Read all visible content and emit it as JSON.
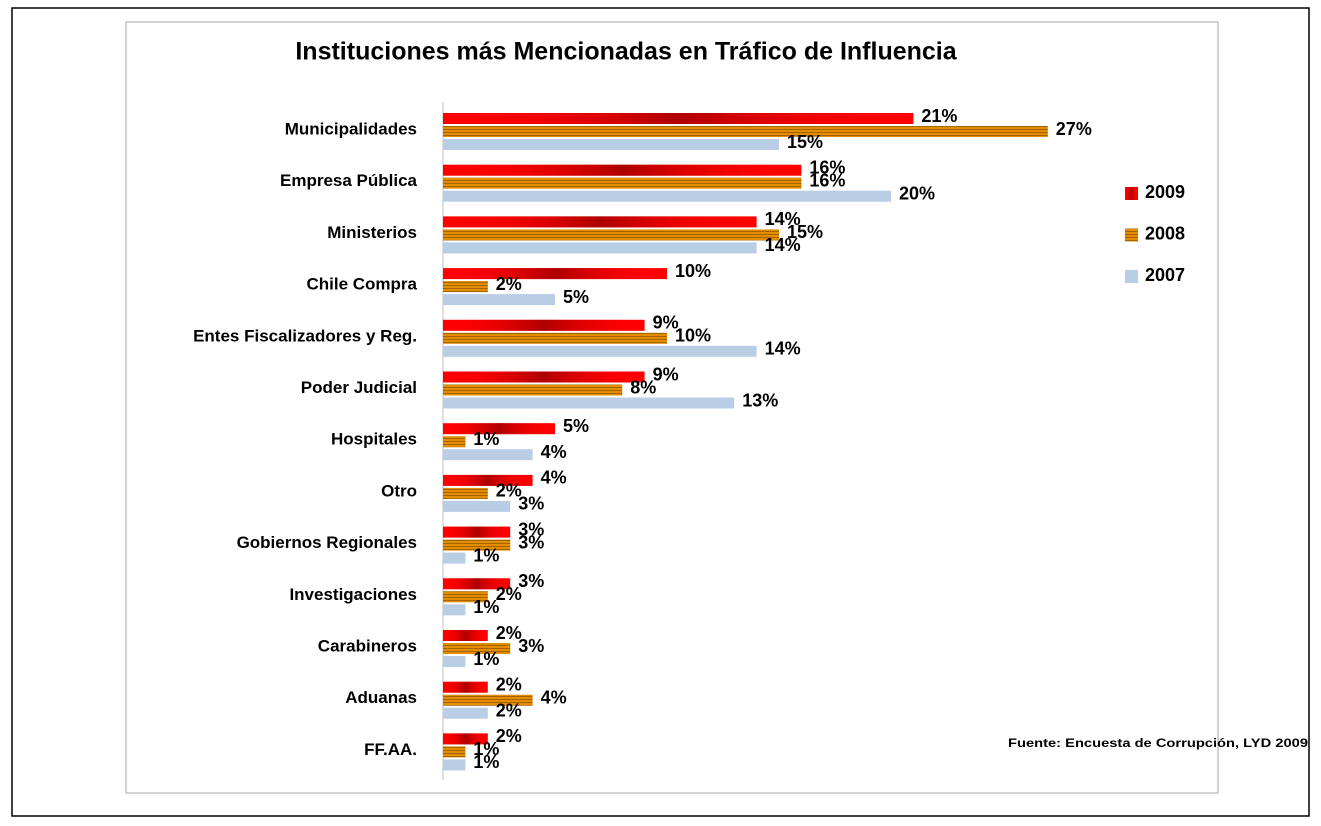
{
  "chart_data": {
    "type": "hbar",
    "title": "Instituciones más Mencionadas en Tráfico de Influencia",
    "categories": [
      "Municipalidades",
      "Empresa Pública",
      "Ministerios",
      "Chile Compra",
      "Entes Fiscalizadores y Reg.",
      "Poder Judicial",
      "Hospitales",
      "Otro",
      "Gobiernos Regionales",
      "Investigaciones",
      "Carabineros",
      "Aduanas",
      "FF.AA."
    ],
    "series": [
      {
        "name": "2009",
        "color": "#ff0000",
        "values": [
          21,
          16,
          14,
          10,
          9,
          9,
          5,
          4,
          3,
          3,
          2,
          2,
          2
        ],
        "value_labels": [
          "21%",
          "16%",
          "14%",
          "10%",
          "9%",
          "9%",
          "5%",
          "4%",
          "3%",
          "3%",
          "2%",
          "2%",
          "2%"
        ]
      },
      {
        "name": "2008",
        "color": "#e38c00",
        "values": [
          27,
          16,
          15,
          2,
          10,
          8,
          1,
          2,
          3,
          2,
          3,
          4,
          1
        ],
        "value_labels": [
          "27%",
          "16%",
          "15%",
          "2%",
          "10%",
          "8%",
          "1%",
          "2%",
          "3%",
          "2%",
          "3%",
          "4%",
          "1%"
        ]
      },
      {
        "name": "2007",
        "color": "#b9cde5",
        "values": [
          15,
          20,
          14,
          5,
          14,
          13,
          4,
          3,
          1,
          1,
          1,
          2,
          1
        ],
        "value_labels": [
          "15%",
          "20%",
          "14%",
          "5%",
          "14%",
          "13%",
          "4%",
          "3%",
          "1%",
          "1%",
          "1%",
          "2%",
          "1%"
        ]
      }
    ],
    "xlim": [
      0,
      30
    ],
    "annotation": "Fuente: Encuesta de Corrupción, LYD 2009",
    "legend": "right"
  }
}
